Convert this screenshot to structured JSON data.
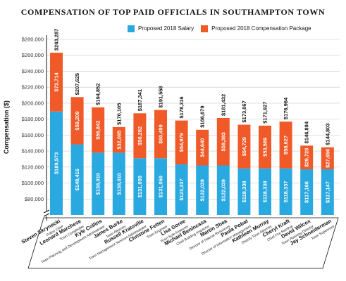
{
  "title": "COMPENSATION OF TOP PAID OFFICIALS IN SOUTHAMPTON TOWN",
  "colors": {
    "salary": "#2aa9e0",
    "package": "#f05a28",
    "grid": "#c8c8c8",
    "text": "#111111"
  },
  "chart_data": {
    "type": "bar",
    "stacked": true,
    "title": "COMPENSATION OF TOP PAID OFFICIALS IN SOUTHAMPTON TOWN",
    "ylabel": "Compensation ($)",
    "xlabel": "",
    "ylim": [
      60000,
      280000
    ],
    "y_axis_break": true,
    "yticks": [
      "$80,000",
      "$100,000",
      "$120,000",
      "$140,000",
      "$160,000",
      "$180,000",
      "$200,000",
      "$220,000",
      "$240,000",
      "$260,000",
      "$280,000"
    ],
    "ytick_values": [
      80000,
      100000,
      120000,
      140000,
      160000,
      180000,
      200000,
      220000,
      240000,
      260000,
      280000
    ],
    "grid": true,
    "legend_position": "top",
    "categories": [
      "Steven Skrynecki",
      "Leonard Marchese",
      "Kyle Collins",
      "James Burke",
      "Russell Kratoville",
      "Christine Fetten",
      "Lisa Goree",
      "Michael Benincasa",
      "Martin Shea",
      "Paula Pobat",
      "Kathleen Murray",
      "Cheryl Kraft",
      "David Wilcox",
      "Jay Schneiderman"
    ],
    "roles": [
      "Police Chief",
      "Town Comptroller",
      "Town Planning and Development Administrator",
      "Town Attorney",
      "Town Management Services Administrator",
      "Town Engineer",
      "Town Sole Assessor",
      "Chief Building Inspector",
      "Director of Natural Resources",
      "Director of Information Management",
      "Deputy Town Attorney",
      "Chief Fire Marshal",
      "Town Planning Director",
      "Town Supervisor"
    ],
    "series": [
      {
        "name": "Proposed 2018 Salary",
        "values": [
          189573,
          148416,
          138010,
          138010,
          131059,
          131059,
          123337,
          122039,
          122039,
          118338,
          118338,
          118337,
          117166,
          117147
        ],
        "labels": [
          "$189,573",
          "$148,416",
          "$138,010",
          "$138,010",
          "$131,059",
          "$131,059",
          "$123,337",
          "$122,039",
          "$122,039",
          "$118,338",
          "$118,338",
          "$118,337",
          "$117,166",
          "$117,147"
        ]
      },
      {
        "name": "Proposed 2018 Compensation Package",
        "values": [
          73714,
          59209,
          56842,
          32095,
          56282,
          60499,
          54979,
          44640,
          59393,
          54729,
          53589,
          58627,
          29728,
          27656
        ],
        "labels": [
          "$73,714",
          "$59,209",
          "$56,842",
          "$32,095",
          "$56,282",
          "$60,499",
          "$54,979",
          "$44,640",
          "$59,393",
          "$54,729",
          "$53,589",
          "$58,627",
          "$29,728",
          "$27,656"
        ]
      }
    ],
    "totals": [
      263287,
      207625,
      194852,
      170105,
      187341,
      191558,
      178316,
      166679,
      181432,
      173067,
      171927,
      176964,
      146894,
      144803
    ],
    "total_labels": [
      "$263,287",
      "$207,625",
      "$194,852",
      "$170,105",
      "$187,341",
      "$191,558",
      "$178,316",
      "$166,679",
      "$181,432",
      "$173,067",
      "$171,927",
      "$176,964",
      "$146,894",
      "$144,803"
    ]
  }
}
